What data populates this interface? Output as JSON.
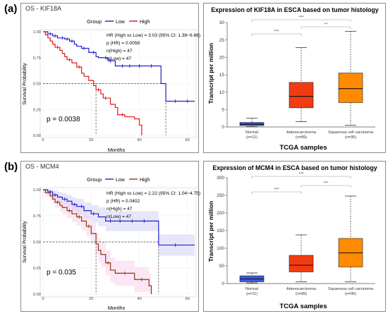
{
  "panel_a": {
    "letter": "(a)",
    "km": {
      "header": "OS - KIF18A",
      "legend_label": "Group",
      "legend_low": "Low",
      "legend_high": "High",
      "stats": [
        "HR (High vs Low) = 3.03 (95% CI: 1.38−6.66)",
        "p (HR) = 0.0058",
        "n(High) = 47",
        "n(Low) = 47"
      ],
      "pvalue": "p = 0.0038"
    },
    "box": {
      "title": "Expression of KIF18A in ESCA based on tumor histology",
      "sig": [
        "***",
        "***",
        "**"
      ]
    }
  },
  "panel_b": {
    "letter": "(b)",
    "km": {
      "header": "OS - MCM4",
      "legend_label": "Group",
      "legend_low": "Low",
      "legend_high": "High",
      "stats": [
        "HR (High vs Low) = 2.22 (95% CI: 1.04−4.75)",
        "p (HR) = 0.0402",
        "n(High) = 47",
        "n(Low) = 47"
      ],
      "pvalue": "p = 0.035"
    },
    "box": {
      "title": "Expression of MCM4 in ESCA based on tumor histology",
      "sig": [
        "***",
        "***",
        "***"
      ]
    }
  },
  "colors": {
    "low": "#1f1fd0",
    "high_a": "#e01818",
    "high_b": "#8b3a10"
  },
  "chart_data": [
    {
      "type": "line",
      "chart": "KM survival KIF18A",
      "xlabel": "Months",
      "ylabel": "Survival Probability",
      "xlim": [
        0,
        63
      ],
      "ylim": [
        0,
        1
      ],
      "xticks": [
        "0",
        "20",
        "40",
        "60"
      ],
      "yticks": [
        "0.00",
        "0.25",
        "0.50",
        "0.75",
        "1.00"
      ],
      "median_line": [
        {
          "x": 0,
          "y": 0.5
        },
        {
          "x": 22,
          "y": 0.5
        },
        {
          "x": 22,
          "y": 0
        },
        {
          "x": 22,
          "y": 0.5
        },
        {
          "x": 51,
          "y": 0.5
        },
        {
          "x": 51,
          "y": 0
        }
      ],
      "series": [
        {
          "name": "Low",
          "color_key": "low",
          "steps": [
            [
              0,
              1.0
            ],
            [
              2,
              0.98
            ],
            [
              4,
              0.96
            ],
            [
              6,
              0.94
            ],
            [
              9,
              0.93
            ],
            [
              11,
              0.91
            ],
            [
              13,
              0.88
            ],
            [
              14,
              0.86
            ],
            [
              16,
              0.84
            ],
            [
              19,
              0.8
            ],
            [
              22,
              0.76
            ],
            [
              23,
              0.75
            ],
            [
              27,
              0.72
            ],
            [
              30,
              0.67
            ],
            [
              49,
              0.5
            ],
            [
              51,
              0.33
            ],
            [
              63,
              0.33
            ]
          ],
          "censor": [
            [
              3,
              0.98
            ],
            [
              5,
              0.96
            ],
            [
              8,
              0.94
            ],
            [
              10,
              0.93
            ],
            [
              12,
              0.91
            ],
            [
              17,
              0.84
            ],
            [
              21,
              0.8
            ],
            [
              26,
              0.75
            ],
            [
              28,
              0.72
            ],
            [
              33,
              0.67
            ],
            [
              36,
              0.67
            ],
            [
              40,
              0.67
            ],
            [
              45,
              0.67
            ],
            [
              55,
              0.33
            ],
            [
              60,
              0.33
            ]
          ]
        },
        {
          "name": "High",
          "color_key": "high_a",
          "steps": [
            [
              0,
              1.0
            ],
            [
              1,
              0.97
            ],
            [
              2,
              0.94
            ],
            [
              3,
              0.91
            ],
            [
              4,
              0.88
            ],
            [
              5,
              0.85
            ],
            [
              7,
              0.82
            ],
            [
              8,
              0.79
            ],
            [
              9,
              0.76
            ],
            [
              10,
              0.73
            ],
            [
              12,
              0.7
            ],
            [
              14,
              0.66
            ],
            [
              16,
              0.6
            ],
            [
              17,
              0.57
            ],
            [
              19,
              0.53
            ],
            [
              21,
              0.48
            ],
            [
              22,
              0.44
            ],
            [
              24,
              0.4
            ],
            [
              25,
              0.36
            ],
            [
              28,
              0.3
            ],
            [
              30,
              0.27
            ],
            [
              31,
              0.2
            ],
            [
              34,
              0.18
            ],
            [
              38,
              0.16
            ],
            [
              40,
              0.1
            ],
            [
              41,
              0.0
            ]
          ],
          "censor": [
            [
              6,
              0.85
            ],
            [
              11,
              0.73
            ],
            [
              15,
              0.66
            ],
            [
              23,
              0.44
            ],
            [
              26,
              0.36
            ],
            [
              33,
              0.2
            ]
          ]
        }
      ]
    },
    {
      "type": "box",
      "chart": "KIF18A expression boxplot",
      "xlabel": "TCGA samples",
      "ylabel": "Transcript per million",
      "ylim": [
        0,
        30
      ],
      "yticks": [
        0,
        5,
        10,
        15,
        20,
        25,
        30
      ],
      "categories": [
        "Normal\n(n=11)",
        "Adenocarcinoma\n(n=89)",
        "Squamous cell carcinoma\n(n=95)"
      ],
      "boxes": [
        {
          "min": 0.1,
          "q1": 0.4,
          "median": 0.8,
          "q3": 1.3,
          "max": 2.5,
          "color": "#3b5bdb"
        },
        {
          "min": 1.5,
          "q1": 5.5,
          "median": 8.8,
          "q3": 12.8,
          "max": 22.8,
          "color": "#f03c10"
        },
        {
          "min": 0.5,
          "q1": 7.0,
          "median": 11.0,
          "q3": 15.5,
          "max": 27.5,
          "color": "#ff8a00"
        }
      ]
    },
    {
      "type": "line",
      "chart": "KM survival MCM4",
      "xlabel": "Months",
      "ylabel": "Survival Probability",
      "xlim": [
        0,
        63
      ],
      "ylim": [
        0,
        1
      ],
      "xticks": [
        "0",
        "20",
        "40",
        "60"
      ],
      "yticks": [
        "0.00",
        "0.25",
        "0.50",
        "0.75",
        "1.00"
      ],
      "median_line": [
        {
          "x": 0,
          "y": 0.5
        },
        {
          "x": 22,
          "y": 0.5
        },
        {
          "x": 22,
          "y": 0
        },
        {
          "x": 22,
          "y": 0.5
        },
        {
          "x": 48,
          "y": 0.5
        },
        {
          "x": 48,
          "y": 0
        }
      ],
      "series": [
        {
          "name": "Low",
          "color_key": "low",
          "steps": [
            [
              0,
              1.0
            ],
            [
              2,
              0.98
            ],
            [
              4,
              0.95
            ],
            [
              6,
              0.93
            ],
            [
              8,
              0.91
            ],
            [
              10,
              0.89
            ],
            [
              12,
              0.86
            ],
            [
              14,
              0.84
            ],
            [
              17,
              0.8
            ],
            [
              20,
              0.77
            ],
            [
              23,
              0.74
            ],
            [
              26,
              0.7
            ],
            [
              48,
              0.47
            ],
            [
              63,
              0.47
            ]
          ],
          "censor": [
            [
              3,
              0.98
            ],
            [
              5,
              0.95
            ],
            [
              9,
              0.91
            ],
            [
              13,
              0.86
            ],
            [
              16,
              0.84
            ],
            [
              21,
              0.77
            ],
            [
              28,
              0.7
            ],
            [
              32,
              0.7
            ],
            [
              37,
              0.7
            ],
            [
              42,
              0.7
            ],
            [
              55,
              0.47
            ]
          ]
        },
        {
          "name": "High",
          "color_key": "high_b",
          "steps": [
            [
              0,
              1.0
            ],
            [
              1,
              0.97
            ],
            [
              3,
              0.94
            ],
            [
              4,
              0.91
            ],
            [
              5,
              0.88
            ],
            [
              7,
              0.85
            ],
            [
              8,
              0.83
            ],
            [
              10,
              0.8
            ],
            [
              12,
              0.77
            ],
            [
              14,
              0.74
            ],
            [
              16,
              0.7
            ],
            [
              18,
              0.65
            ],
            [
              20,
              0.58
            ],
            [
              22,
              0.48
            ],
            [
              23,
              0.42
            ],
            [
              24,
              0.38
            ],
            [
              26,
              0.3
            ],
            [
              28,
              0.23
            ],
            [
              30,
              0.2
            ],
            [
              38,
              0.14
            ],
            [
              44,
              0.08
            ],
            [
              45,
              0.0
            ]
          ],
          "censor": [
            [
              6,
              0.88
            ],
            [
              11,
              0.8
            ],
            [
              15,
              0.74
            ],
            [
              19,
              0.65
            ],
            [
              27,
              0.3
            ],
            [
              34,
              0.2
            ],
            [
              41,
              0.14
            ]
          ]
        }
      ]
    },
    {
      "type": "box",
      "chart": "MCM4 expression boxplot",
      "xlabel": "TCGA samples",
      "ylabel": "Transcript per million",
      "ylim": [
        0,
        300
      ],
      "yticks": [
        0,
        50,
        100,
        150,
        200,
        250,
        300
      ],
      "categories": [
        "Normal\n(n=11)",
        "Adenocarcinoma\n(n=89)",
        "Squamous cell carcinoma\n(n=95)"
      ],
      "boxes": [
        {
          "min": 2,
          "q1": 5,
          "median": 13,
          "q3": 22,
          "max": 30,
          "color": "#3b5bdb"
        },
        {
          "min": 5,
          "q1": 33,
          "median": 52,
          "q3": 80,
          "max": 138,
          "color": "#f03c10"
        },
        {
          "min": 5,
          "q1": 47,
          "median": 87,
          "q3": 128,
          "max": 248,
          "color": "#ff8a00"
        }
      ]
    }
  ]
}
